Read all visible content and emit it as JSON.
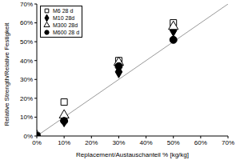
{
  "chart_data": {
    "type": "scatter",
    "x_label": "Replacement/Austauschanteil % [kg/kg]",
    "y_label": "Relative Strength/Relative Festigkeit",
    "x": [
      0,
      10,
      30,
      50
    ],
    "series": [
      {
        "name": "M6 28 d",
        "color": "#000000",
        "marker": "square-open",
        "values": [
          0,
          18,
          40,
          60
        ]
      },
      {
        "name": "M10 28d",
        "color": "#000000",
        "marker": "diamond",
        "values": [
          0,
          8,
          34,
          56
        ]
      },
      {
        "name": "M300 28d",
        "color": "#000000",
        "marker": "triangle-open",
        "values": [
          0,
          11,
          39,
          58
        ]
      },
      {
        "name": "M600 28 d",
        "color": "#000000",
        "marker": "circle",
        "values": [
          0,
          8,
          37,
          51
        ]
      },
      {
        "type": "line",
        "line_style": "solid",
        "color": "#999999",
        "x": [
          0,
          70
        ],
        "values": [
          0,
          70
        ]
      }
    ],
    "xlim": [
      0,
      70
    ],
    "ylim": [
      0,
      70
    ],
    "xticks": [
      {
        "value": 0,
        "label": "0%"
      },
      {
        "value": 10,
        "label": "10%"
      },
      {
        "value": 20,
        "label": "20%"
      },
      {
        "value": 30,
        "label": "30%"
      },
      {
        "value": 40,
        "label": "40%"
      },
      {
        "value": 50,
        "label": "50%"
      },
      {
        "value": 60,
        "label": "60%"
      },
      {
        "value": 70,
        "label": "70%"
      }
    ],
    "yticks": [
      {
        "value": 0,
        "label": "0%"
      },
      {
        "value": 10,
        "label": "10%"
      },
      {
        "value": 20,
        "label": "20%"
      },
      {
        "value": 30,
        "label": "30%"
      },
      {
        "value": 40,
        "label": "40%"
      },
      {
        "value": 50,
        "label": "50%"
      },
      {
        "value": 60,
        "label": "60%"
      },
      {
        "value": 70,
        "label": "70%"
      }
    ],
    "grid": false,
    "legend": "upper left"
  }
}
